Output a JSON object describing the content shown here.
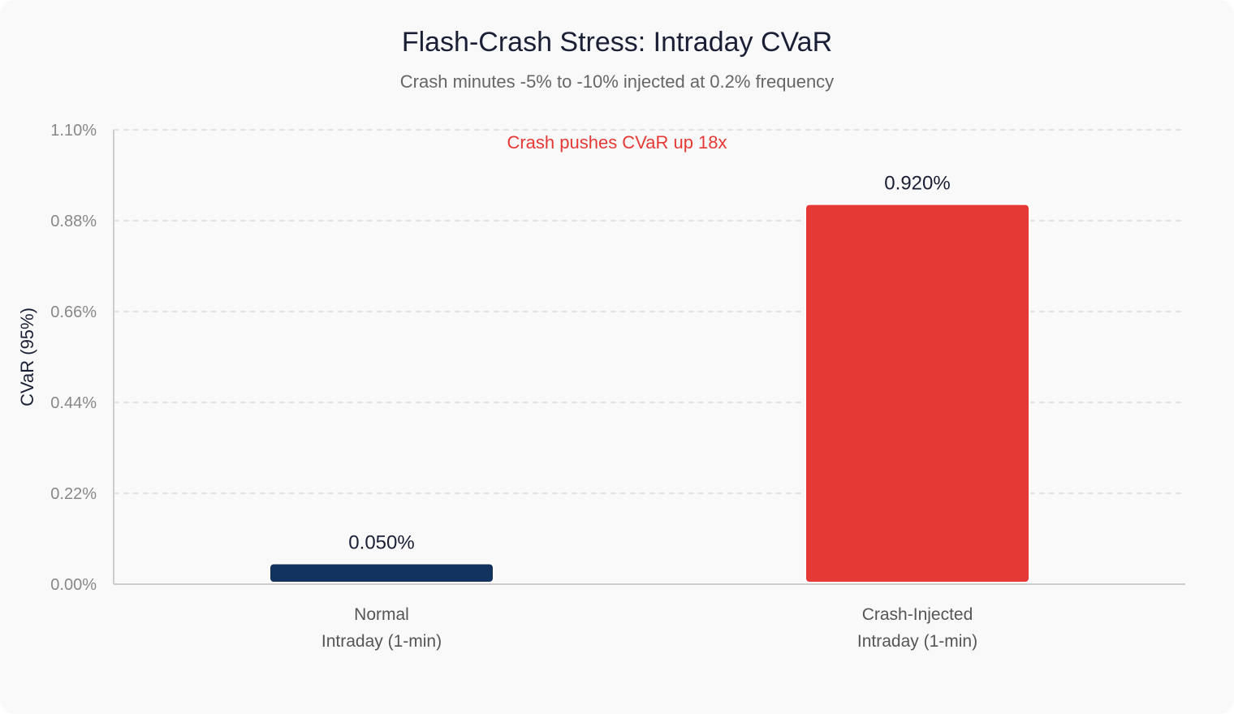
{
  "chart_data": {
    "type": "bar",
    "title": "Flash-Crash Stress: Intraday CVaR",
    "subtitle": "Crash minutes -5% to -10% injected at 0.2% frequency",
    "ylabel": "CVaR (95%)",
    "xlabel": "",
    "ylim": [
      0,
      1.1
    ],
    "yticks": [
      "0.00%",
      "0.22%",
      "0.44%",
      "0.66%",
      "0.88%",
      "1.10%"
    ],
    "categories": [
      [
        "Normal",
        "Intraday (1-min)"
      ],
      [
        "Crash-Injected",
        "Intraday (1-min)"
      ]
    ],
    "values": [
      0.05,
      0.92
    ],
    "value_labels": [
      "0.050%",
      "0.920%"
    ],
    "colors": [
      "#12335e",
      "#e53935"
    ],
    "annotation": "Crash pushes CVaR up 18x",
    "annotation_color": "#e53935",
    "grid": true,
    "legend": "none"
  }
}
